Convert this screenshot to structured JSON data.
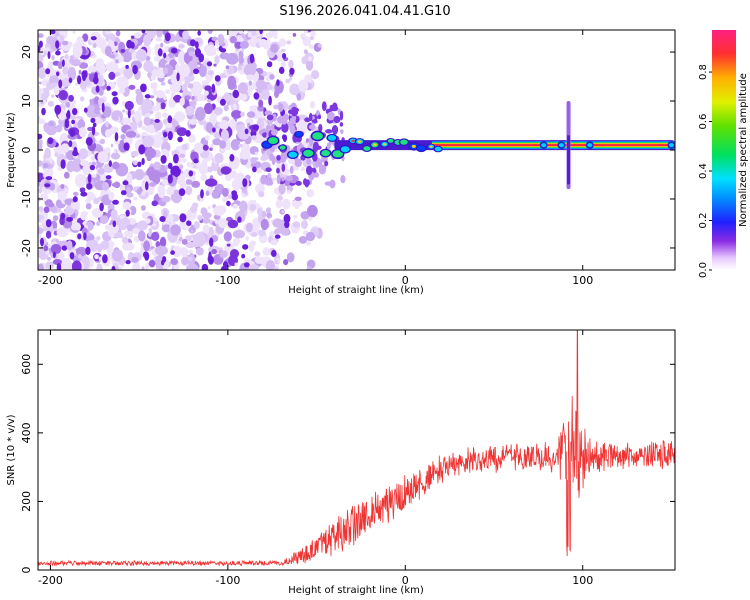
{
  "title": "S196.2026.041.04.41.G10",
  "colors": {
    "snr_line": "#ee3333",
    "ridge_core": "#ff2040",
    "noise_light": "#d9c3f5",
    "noise_dark": "#6a1fd9"
  },
  "chart_data": [
    {
      "type": "heatmap",
      "name": "spectrogram",
      "xlabel": "Height of straight line (km)",
      "ylabel": "Frequency (Hz)",
      "xlim": [
        -207,
        152
      ],
      "ylim": [
        -24.5,
        24.5
      ],
      "xticks": [
        -200,
        -100,
        0,
        100
      ],
      "xtick_labels": [
        "-200",
        "-100",
        "0",
        "100"
      ],
      "yticks": [
        -20,
        -10,
        0,
        10,
        20
      ],
      "ytick_labels": [
        "-20",
        "-10",
        "0",
        "10",
        "20"
      ],
      "colorbar": {
        "label": "Normalized spectral amplitude",
        "range": [
          0,
          0.97
        ],
        "ticks": [
          0.0,
          0.2,
          0.4,
          0.6,
          0.8
        ],
        "tick_labels": [
          "0.0",
          "0.2",
          "0.4",
          "0.6",
          "0.8"
        ]
      },
      "ridge": {
        "frequency_hz": 1.0,
        "start_km": -80,
        "end_km": 152,
        "peak_amplitude": 0.97,
        "disturbance_km": 92,
        "disturbance_freq_range": [
          -8,
          10
        ]
      },
      "noise_region_km": [
        -207,
        -62
      ]
    },
    {
      "type": "line",
      "name": "snr",
      "xlabel": "Height of straight line (km)",
      "ylabel": "SNR (10 * v/v)",
      "xlim": [
        -207,
        152
      ],
      "ylim": [
        0,
        700
      ],
      "xticks": [
        -200,
        -100,
        0,
        100
      ],
      "xtick_labels": [
        "-200",
        "-100",
        "0",
        "100"
      ],
      "yticks": [
        0,
        200,
        400,
        600
      ],
      "ytick_labels": [
        "0",
        "200",
        "400",
        "600"
      ],
      "profile": [
        {
          "km": -207,
          "level": 20,
          "spread": 8
        },
        {
          "km": -70,
          "level": 20,
          "spread": 8
        },
        {
          "km": -58,
          "level": 40,
          "spread": 35
        },
        {
          "km": -45,
          "level": 80,
          "spread": 60
        },
        {
          "km": -30,
          "level": 130,
          "spread": 70
        },
        {
          "km": -15,
          "level": 180,
          "spread": 70
        },
        {
          "km": 0,
          "level": 220,
          "spread": 60
        },
        {
          "km": 10,
          "level": 260,
          "spread": 55
        },
        {
          "km": 20,
          "level": 290,
          "spread": 50
        },
        {
          "km": 35,
          "level": 320,
          "spread": 45
        },
        {
          "km": 60,
          "level": 330,
          "spread": 45
        },
        {
          "km": 85,
          "level": 330,
          "spread": 50
        },
        {
          "km": 95,
          "level": 330,
          "spread": 200
        },
        {
          "km": 105,
          "level": 330,
          "spread": 50
        },
        {
          "km": 152,
          "level": 340,
          "spread": 45
        }
      ],
      "max_value": 700,
      "max_at_km": 97
    }
  ]
}
